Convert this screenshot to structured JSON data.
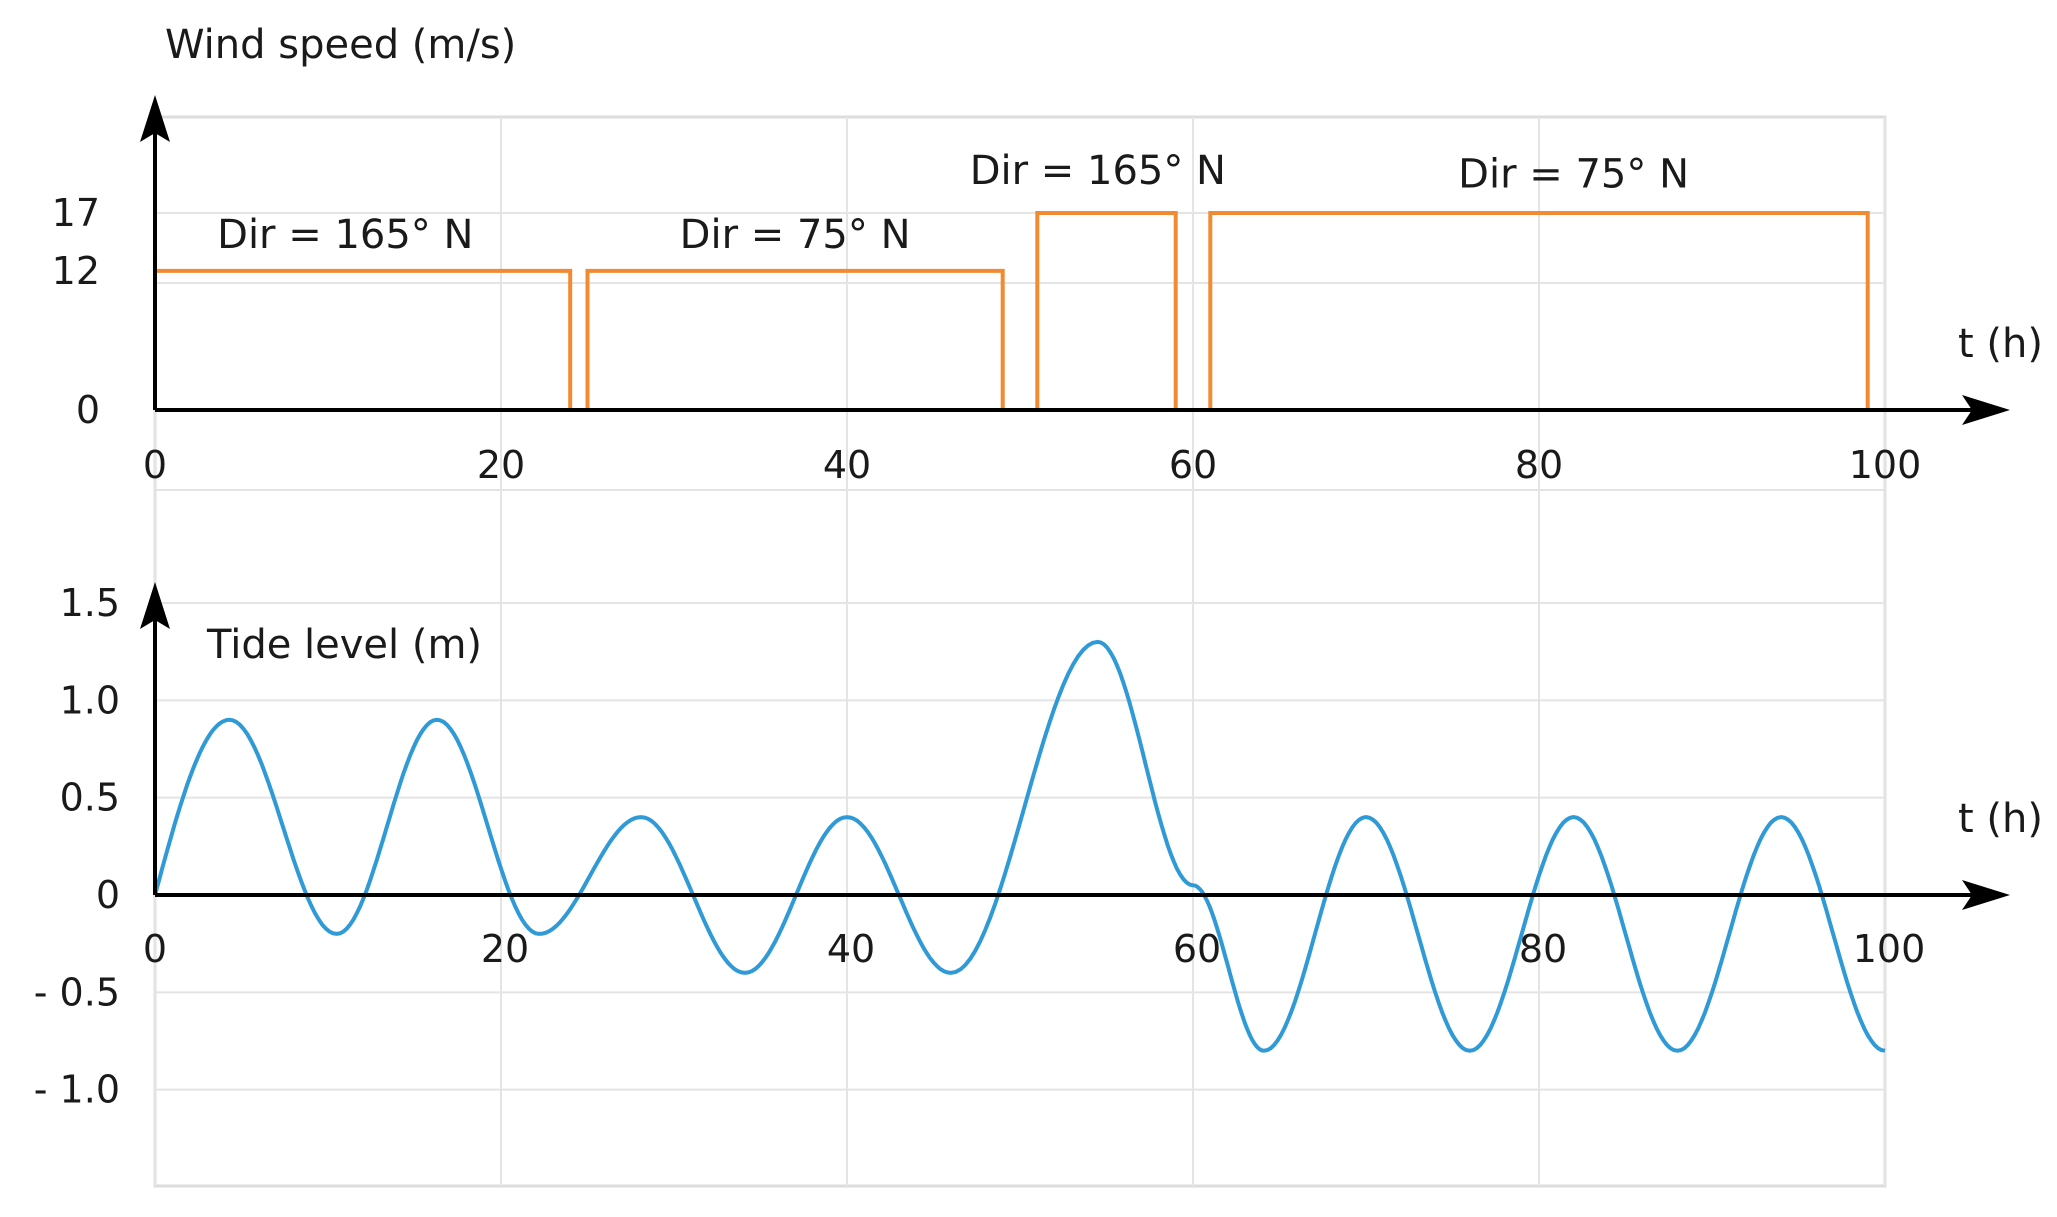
{
  "chart_data": [
    {
      "type": "line",
      "step": true,
      "ylabel": "Wind speed (m/s)",
      "xlabel": "t (h)",
      "xlim": [
        0,
        100
      ],
      "ylim": [
        0,
        20
      ],
      "x_ticks": [
        "0",
        "20",
        "40",
        "60",
        "80",
        "100"
      ],
      "y_ticks": [
        {
          "value": 0,
          "label": "0"
        },
        {
          "value": 12,
          "label": "12"
        },
        {
          "value": 17,
          "label": "17"
        }
      ],
      "grid": true,
      "color": "#f28a33",
      "x": [
        0,
        24,
        24,
        25,
        25,
        49,
        49,
        51,
        51,
        59,
        59,
        61,
        61,
        99,
        99,
        100
      ],
      "y": [
        12,
        12,
        0,
        0,
        12,
        12,
        0,
        0,
        17,
        17,
        0,
        0,
        17,
        17,
        0,
        0
      ],
      "annotations": [
        {
          "text": "Dir = 165° N",
          "x": 11,
          "y": 14
        },
        {
          "text": "Dir = 75° N",
          "x": 37,
          "y": 14
        },
        {
          "text": "Dir = 165° N",
          "x": 54.5,
          "y": 19.5
        },
        {
          "text": "Dir = 75° N",
          "x": 82,
          "y": 19.2
        }
      ]
    },
    {
      "type": "line",
      "ylabel": "Tide level (m)",
      "xlabel": "t (h)",
      "xlim": [
        0,
        100
      ],
      "ylim": [
        -1.35,
        1.5
      ],
      "x_ticks": [
        "0",
        "20",
        "40",
        "60",
        "80",
        "100"
      ],
      "y_ticks": [
        {
          "value": 1.5,
          "label": "1.5"
        },
        {
          "value": 1.0,
          "label": "1.0"
        },
        {
          "value": 0.5,
          "label": "0.5"
        },
        {
          "value": 0,
          "label": "0"
        },
        {
          "value": -0.5,
          "label": "- 0.5"
        },
        {
          "value": -1.0,
          "label": "- 1.0"
        }
      ],
      "grid": true,
      "color": "#2f9ad6",
      "x": [
        0,
        4.3,
        10.5,
        16.3,
        22.2,
        28.1,
        34.1,
        40.0,
        46.0,
        54.5,
        60.0,
        64.1,
        70.0,
        76.0,
        82.0,
        88.0,
        94.0,
        100.0
      ],
      "y": [
        0,
        0.9,
        -0.2,
        0.9,
        -0.2,
        0.4,
        -0.4,
        0.4,
        -0.4,
        1.3,
        0.05,
        -0.8,
        0.4,
        -0.8,
        0.4,
        -0.8,
        0.4,
        -0.8
      ]
    }
  ]
}
